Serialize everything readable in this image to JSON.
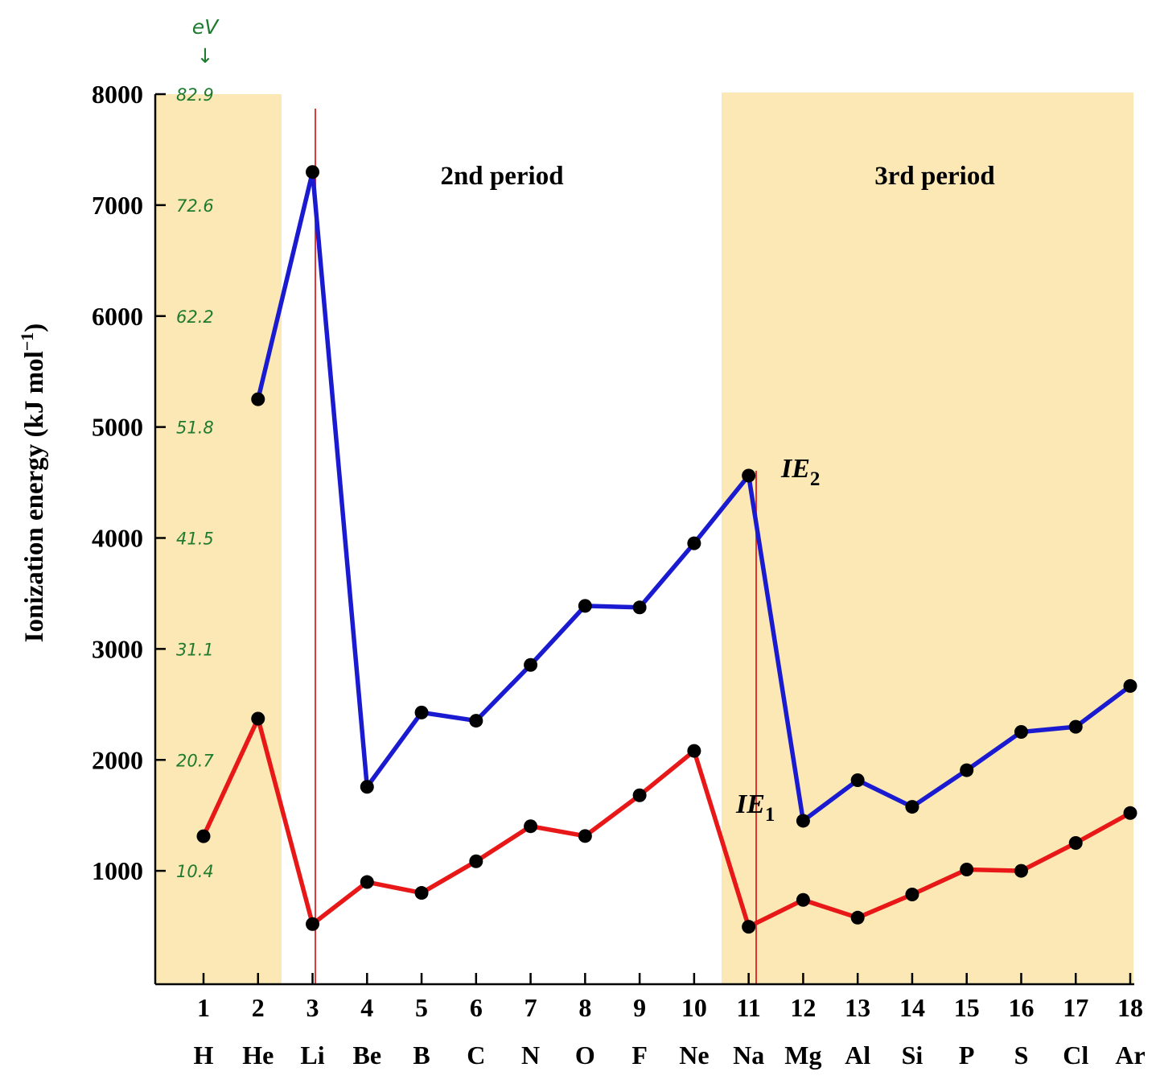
{
  "chart_data": {
    "type": "line",
    "ylabel": "Ionization energy (kJ mol",
    "ylabel_sup": "−1",
    "ylabel_end": ")",
    "ylim": [
      0,
      8000
    ],
    "yticks": [
      "1000",
      "2000",
      "3000",
      "4000",
      "5000",
      "6000",
      "7000",
      "8000"
    ],
    "ev_header": "eV",
    "ev_arrow": "↓",
    "ev_labels": [
      "10.4",
      "20.7",
      "31.1",
      "41.5",
      "51.8",
      "62.2",
      "72.6",
      "82.9"
    ],
    "x": [
      1,
      2,
      3,
      4,
      5,
      6,
      7,
      8,
      9,
      10,
      11,
      12,
      13,
      14,
      15,
      16,
      17,
      18
    ],
    "xtick_numbers": [
      "1",
      "2",
      "3",
      "4",
      "5",
      "6",
      "7",
      "8",
      "9",
      "10",
      "11",
      "12",
      "13",
      "14",
      "15",
      "16",
      "17",
      "18"
    ],
    "elements": [
      "H",
      "He",
      "Li",
      "Be",
      "B",
      "C",
      "N",
      "O",
      "F",
      "Ne",
      "Na",
      "Mg",
      "Al",
      "Si",
      "P",
      "S",
      "Cl",
      "Ar"
    ],
    "period_labels": [
      "2nd period",
      "3rd period"
    ],
    "series": [
      {
        "name": "IE",
        "subscript": "1",
        "color": "#e81818",
        "x": [
          1,
          2,
          3,
          4,
          5,
          6,
          7,
          8,
          9,
          10,
          11,
          12,
          13,
          14,
          15,
          16,
          17,
          18
        ],
        "values": [
          1312,
          2372,
          520,
          899,
          801,
          1086,
          1402,
          1314,
          1681,
          2081,
          496,
          738,
          578,
          787,
          1012,
          1000,
          1251,
          1521
        ]
      },
      {
        "name": "IE",
        "subscript": "2",
        "color": "#1a1ad0",
        "x": [
          2,
          3,
          4,
          5,
          6,
          7,
          8,
          9,
          10,
          11,
          12,
          13,
          14,
          15,
          16,
          17,
          18
        ],
        "values": [
          5250,
          7298,
          1757,
          2427,
          2353,
          2856,
          3388,
          3374,
          3952,
          4562,
          1451,
          1817,
          1577,
          1907,
          2252,
          2298,
          2666
        ]
      }
    ],
    "grid": false,
    "legend": "none"
  }
}
